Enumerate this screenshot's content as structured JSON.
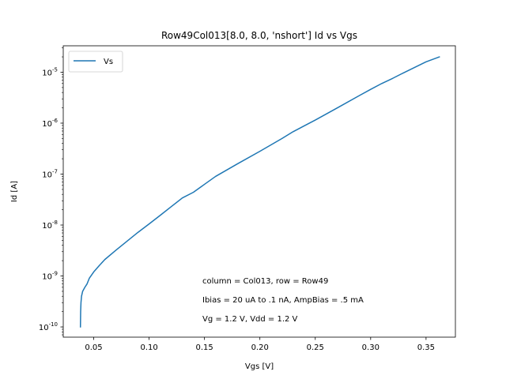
{
  "chart_data": {
    "type": "line",
    "title": "Row49Col013[8.0, 8.0, 'nshort'] Id vs Vgs",
    "xlabel": "Vgs [V]",
    "ylabel": "Id [A]",
    "xscale": "linear",
    "yscale": "log",
    "xlim": [
      0.0225,
      0.3765
    ],
    "ylim": [
      6.3e-11,
      3.3e-05
    ],
    "grid": false,
    "legend_position": "top-left",
    "x_ticks": [
      {
        "value": 0.05,
        "label": "0.05"
      },
      {
        "value": 0.1,
        "label": "0.10"
      },
      {
        "value": 0.15,
        "label": "0.15"
      },
      {
        "value": 0.2,
        "label": "0.20"
      },
      {
        "value": 0.25,
        "label": "0.25"
      },
      {
        "value": 0.3,
        "label": "0.30"
      },
      {
        "value": 0.35,
        "label": "0.35"
      }
    ],
    "y_ticks": [
      {
        "value": 1e-10,
        "exp": "-10"
      },
      {
        "value": 1e-09,
        "exp": "-9"
      },
      {
        "value": 1e-08,
        "exp": "-8"
      },
      {
        "value": 1e-07,
        "exp": "-7"
      },
      {
        "value": 1e-06,
        "exp": "-6"
      },
      {
        "value": 1e-05,
        "exp": "-5"
      }
    ],
    "y_tick_base": "10",
    "series": [
      {
        "name": "Vs",
        "color": "#1f77b4",
        "x": [
          0.038,
          0.0382,
          0.0385,
          0.039,
          0.04,
          0.042,
          0.044,
          0.046,
          0.05,
          0.055,
          0.06,
          0.07,
          0.08,
          0.09,
          0.1,
          0.11,
          0.12,
          0.13,
          0.14,
          0.15,
          0.16,
          0.18,
          0.2,
          0.22,
          0.23,
          0.25,
          0.27,
          0.29,
          0.3,
          0.31,
          0.32,
          0.33,
          0.34,
          0.35,
          0.362
        ],
        "y": [
          1e-10,
          2e-10,
          3e-10,
          4e-10,
          5e-10,
          6e-10,
          7e-10,
          9e-10,
          1.2e-09,
          1.6e-09,
          2.1e-09,
          3.2e-09,
          4.8e-09,
          7.2e-09,
          1.05e-08,
          1.55e-08,
          2.3e-08,
          3.4e-08,
          4.4e-08,
          6.3e-08,
          9e-08,
          1.6e-07,
          2.8e-07,
          5e-07,
          6.8e-07,
          1.15e-06,
          2e-06,
          3.5e-06,
          4.6e-06,
          6e-06,
          7.6e-06,
          9.8e-06,
          1.25e-05,
          1.6e-05,
          2e-05
        ]
      }
    ],
    "annotations": [
      "column = Col013, row = Row49",
      "Ibias = 20 uA to .1 nA, AmpBias = .5 mA",
      "Vg = 1.2 V, Vdd = 1.2 V"
    ]
  }
}
